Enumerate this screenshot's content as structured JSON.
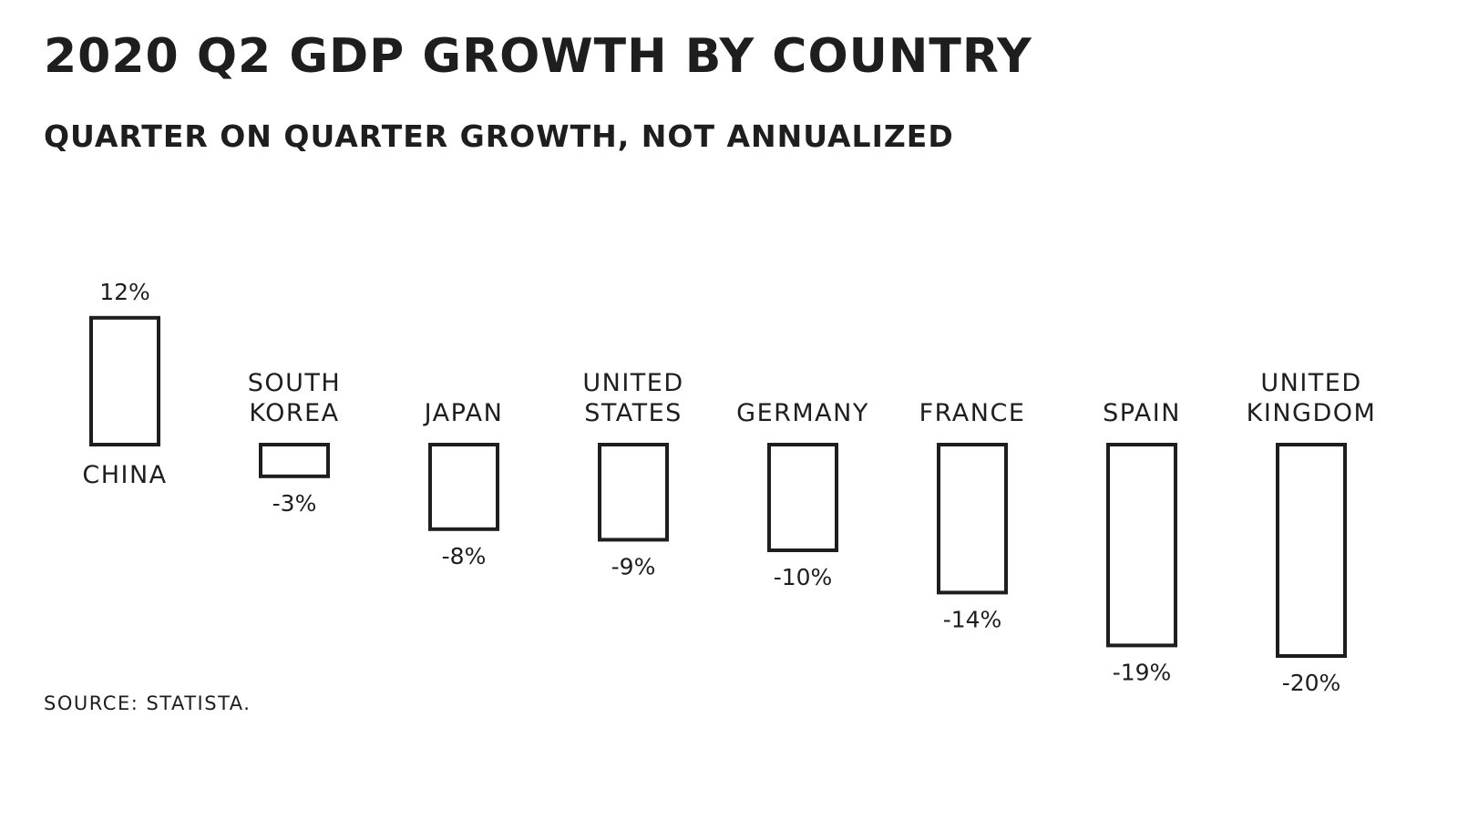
{
  "title": "2020 Q2 GDP GROWTH BY COUNTRY",
  "subtitle": "QUARTER ON QUARTER GROWTH, NOT ANNUALIZED",
  "source": "SOURCE: STATISTA.",
  "colors": {
    "ink": "#1e1e1e",
    "bar_fill": "#ffffff"
  },
  "chart_data": {
    "type": "bar",
    "title": "2020 Q2 GDP GROWTH BY COUNTRY",
    "subtitle": "QUARTER ON QUARTER GROWTH, NOT ANNUALIZED",
    "xlabel": "",
    "ylabel": "",
    "categories": [
      [
        "CHINA"
      ],
      [
        "SOUTH",
        "KOREA"
      ],
      [
        "JAPAN"
      ],
      [
        "UNITED",
        "STATES"
      ],
      [
        "GERMANY"
      ],
      [
        "FRANCE"
      ],
      [
        "SPAIN"
      ],
      [
        "UNITED",
        "KINGDOM"
      ]
    ],
    "values": [
      12,
      -3,
      -8,
      -9,
      -10,
      -14,
      -19,
      -20
    ],
    "value_labels": [
      "12%",
      "-3%",
      "-8%",
      "-9%",
      "-10%",
      "-14%",
      "-19%",
      "-20%"
    ],
    "ylim": [
      -20,
      12
    ],
    "grid": false,
    "axes_visible": false,
    "legend": "none"
  }
}
